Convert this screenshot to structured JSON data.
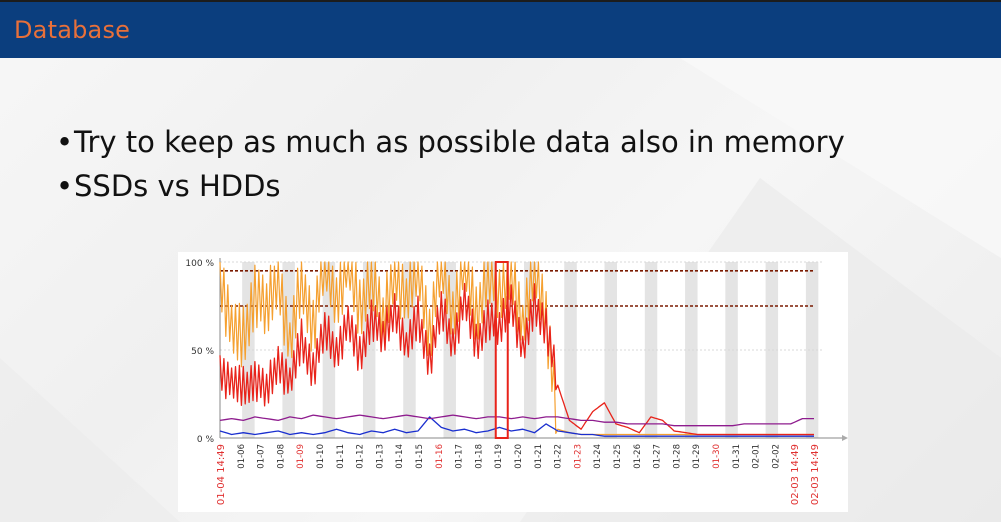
{
  "slide": {
    "title": "Database",
    "bullets": [
      "Try to keep as much as possible data also in memory",
      "SSDs vs HDDs"
    ]
  },
  "colors": {
    "title_bar": "#0b3e7e",
    "title_text": "#e8703a",
    "series_orange": "#f5a030",
    "series_red": "#e8231a",
    "series_blue": "#1a2fcf",
    "series_purple": "#8e1c8e",
    "series_darkred": "#8a2a16",
    "threshold": "#7a1a00",
    "weekend_red": "#e03030"
  },
  "chart_data": {
    "type": "line",
    "y_ticks": [
      "0 %",
      "50 %",
      "100 %"
    ],
    "ylim": [
      0,
      100
    ],
    "x_labels": [
      "01-04 14:49",
      "01-06",
      "01-07",
      "01-08",
      "01-09",
      "01-10",
      "01-11",
      "01-12",
      "01-13",
      "01-14",
      "01-15",
      "01-16",
      "01-17",
      "01-18",
      "01-19",
      "01-20",
      "01-21",
      "01-22",
      "01-23",
      "01-24",
      "01-25",
      "01-26",
      "01-27",
      "01-28",
      "01-29",
      "01-30",
      "01-31",
      "02-01",
      "02-02",
      "02-03 14:49",
      "02-03 14:49"
    ],
    "red_labels": [
      "01-04 14:49",
      "01-09",
      "01-16",
      "01-23",
      "01-30",
      "02-03 14:49",
      "02-03 14:49"
    ],
    "thresholds": [
      95,
      75
    ],
    "series": [
      {
        "key": "orange",
        "values": [
          95,
          60,
          55,
          85,
          70,
          95,
          50,
          90,
          65,
          100,
          80,
          100,
          70,
          98,
          62,
          100,
          75,
          100,
          60,
          100,
          72,
          100,
          66,
          100,
          78,
          100,
          60,
          100,
          70,
          5,
          3,
          2,
          2,
          2,
          2,
          2,
          2,
          2,
          2,
          2,
          2,
          2,
          2,
          2,
          2,
          2,
          2,
          2,
          2,
          2,
          2,
          2
        ]
      },
      {
        "key": "red",
        "values": [
          40,
          30,
          28,
          35,
          25,
          45,
          30,
          55,
          40,
          60,
          50,
          65,
          45,
          70,
          55,
          75,
          50,
          68,
          45,
          72,
          55,
          78,
          52,
          70,
          60,
          80,
          48,
          75,
          65,
          30,
          10,
          5,
          15,
          20,
          8,
          6,
          3,
          12,
          10,
          4,
          3,
          2,
          2,
          2,
          2,
          2,
          2,
          2,
          2,
          2,
          2,
          2
        ]
      },
      {
        "key": "blue",
        "values": [
          4,
          2,
          3,
          2,
          3,
          4,
          2,
          3,
          2,
          3,
          5,
          3,
          2,
          4,
          3,
          5,
          3,
          4,
          12,
          6,
          4,
          5,
          3,
          4,
          6,
          4,
          5,
          3,
          8,
          4,
          3,
          2,
          2,
          1,
          1,
          1,
          1,
          1,
          1,
          1,
          1,
          1,
          1,
          1,
          1,
          1,
          1,
          1,
          1,
          1,
          1,
          1
        ]
      },
      {
        "key": "purple",
        "values": [
          10,
          11,
          10,
          12,
          11,
          10,
          12,
          11,
          13,
          12,
          11,
          12,
          13,
          12,
          11,
          12,
          13,
          12,
          11,
          12,
          13,
          12,
          11,
          12,
          12,
          11,
          12,
          11,
          12,
          12,
          11,
          10,
          10,
          9,
          9,
          8,
          8,
          8,
          8,
          7,
          7,
          7,
          7,
          7,
          7,
          8,
          8,
          8,
          8,
          8,
          11,
          11
        ]
      }
    ]
  }
}
